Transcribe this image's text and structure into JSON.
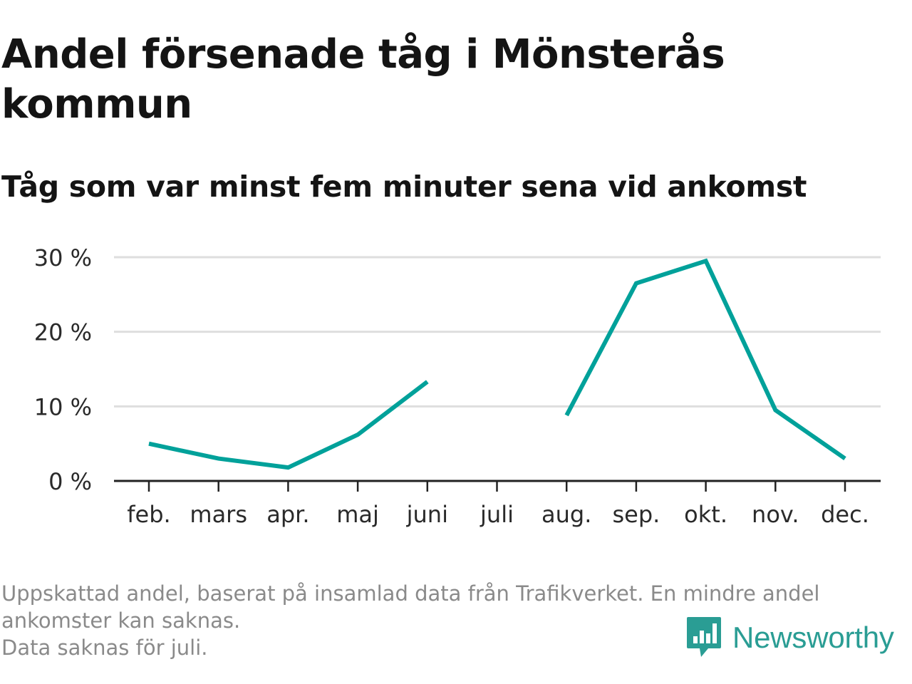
{
  "title": "Andel försenade tåg i Mönsterås kommun",
  "subtitle": "Tåg som var minst fem minuter sena vid ankomst",
  "notes": [
    "Uppskattad andel, baserat på insamlad data från Trafikverket. En mindre andel ankomster kan saknas.",
    "Data saknas för juli."
  ],
  "brand": {
    "name": "Newsworthy",
    "icon": "newsworthy-logo-icon",
    "color": "#2a9d94"
  },
  "chart_data": {
    "type": "line",
    "title": "Andel försenade tåg i Mönsterås kommun",
    "subtitle": "Tåg som var minst fem minuter sena vid ankomst",
    "xlabel": "",
    "ylabel": "",
    "categories": [
      "feb.",
      "mars",
      "apr.",
      "maj",
      "juni",
      "juli",
      "aug.",
      "sep.",
      "okt.",
      "nov.",
      "dec."
    ],
    "series": [
      {
        "values": [
          5.0,
          3.0,
          1.8,
          6.2,
          13.3,
          null,
          8.8,
          26.5,
          29.5,
          9.5,
          3.0
        ],
        "color": "#00a19a"
      }
    ],
    "ylim": [
      0,
      30
    ],
    "yticks": [
      0,
      10,
      20,
      30
    ],
    "ytick_labels": [
      "0 %",
      "10 %",
      "20 %",
      "30 %"
    ],
    "grid": true,
    "legend": "none",
    "gridline_color": "#dedede",
    "axis_color": "#222222"
  }
}
